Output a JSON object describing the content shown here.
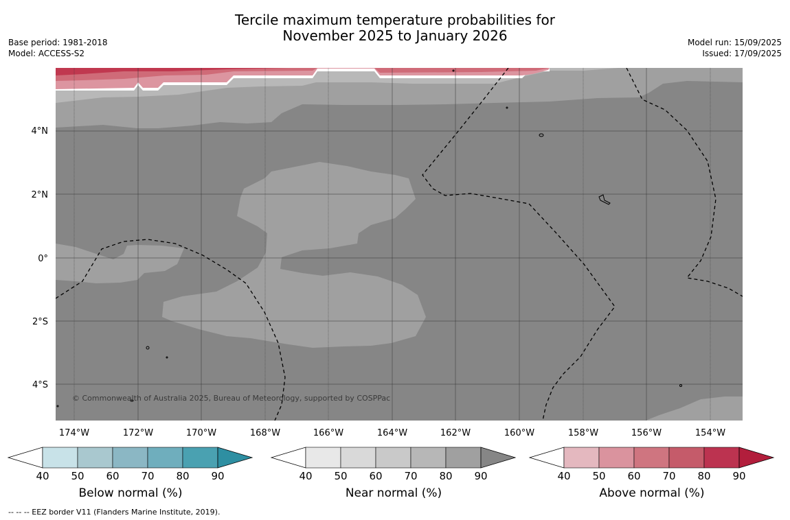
{
  "header": {
    "title_line1": "Tercile maximum temperature probabilities for",
    "title_line2": "November 2025 to January 2026",
    "base_period": "Base period: 1981-2018",
    "model": "Model: ACCESS-S2",
    "model_run": "Model run: 15/09/2025",
    "issued": "Issued: 17/09/2025"
  },
  "map": {
    "lat_labels": [
      "4°N",
      "2°N",
      "0°",
      "2°S",
      "4°S"
    ],
    "lon_labels": [
      "174°W",
      "172°W",
      "170°W",
      "168°W",
      "166°W",
      "164°W",
      "162°W",
      "160°W",
      "158°W",
      "156°W",
      "154°W"
    ],
    "copyright": "© Commonwealth of Australia 2025, Bureau of Meteorology, supported by COSPPac",
    "colors": {
      "near_normal_dominant": "#868686",
      "near_normal_mid": "#a0a0a0",
      "near_normal_light": "#b8b8b8",
      "above_normal_high": "#c0384f",
      "above_normal_mid": "#cf6b78",
      "above_normal_low": "#dc95a0"
    }
  },
  "legends": [
    {
      "caption": "Below normal (%)",
      "ticks": [
        "40",
        "50",
        "60",
        "70",
        "80",
        "90"
      ],
      "colors": [
        "#c8e2e8",
        "#a9c8cf",
        "#8bb7c4",
        "#6faebd",
        "#4aa1b1",
        "#2e8fa2"
      ]
    },
    {
      "caption": "Near normal (%)",
      "ticks": [
        "40",
        "50",
        "60",
        "70",
        "80",
        "90"
      ],
      "colors": [
        "#e8e8e8",
        "#d9d9d9",
        "#c9c9c9",
        "#b7b7b7",
        "#a0a0a0",
        "#868686"
      ]
    },
    {
      "caption": "Above normal (%)",
      "ticks": [
        "40",
        "50",
        "60",
        "70",
        "80",
        "90"
      ],
      "colors": [
        "#e4b8bf",
        "#da939e",
        "#cf7580",
        "#c55b6a",
        "#bc3350",
        "#b21e3c"
      ]
    }
  ],
  "footnote": "--  --  -- EEZ border V11 (Flanders Marine Institute, 2019)."
}
